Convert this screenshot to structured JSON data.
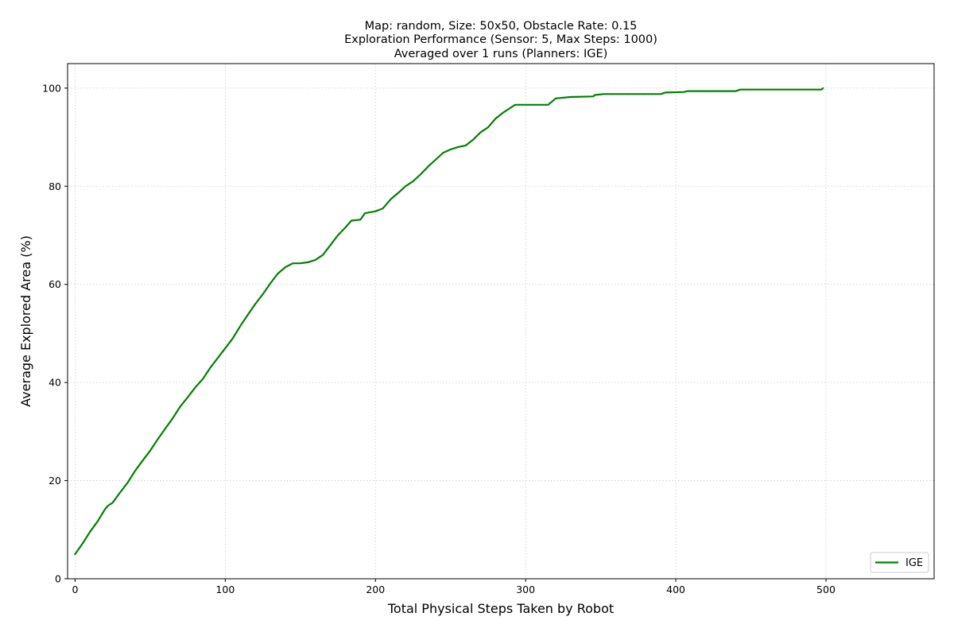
{
  "chart_data": {
    "type": "line",
    "title_lines": [
      "Map: random, Size: 50x50, Obstacle Rate: 0.15",
      "Exploration Performance (Sensor: 5, Max Steps: 1000)",
      "Averaged over 1 runs (Planners: IGE)"
    ],
    "xlabel": "Total Physical Steps Taken by Robot",
    "ylabel": "Average Explored Area (%)",
    "xlim": [
      -5,
      572
    ],
    "ylim": [
      0,
      105
    ],
    "xticks": [
      0,
      100,
      200,
      300,
      400,
      500
    ],
    "yticks": [
      0,
      20,
      40,
      60,
      80,
      100
    ],
    "grid": true,
    "legend_position": "bottom-right",
    "series": [
      {
        "name": "IGE",
        "color": "#008000",
        "points": [
          [
            0,
            5.0
          ],
          [
            5,
            7.2
          ],
          [
            10,
            9.6
          ],
          [
            15,
            11.7
          ],
          [
            20,
            14.2
          ],
          [
            22,
            14.9
          ],
          [
            25,
            15.5
          ],
          [
            30,
            17.6
          ],
          [
            35,
            19.6
          ],
          [
            40,
            22.0
          ],
          [
            45,
            24.1
          ],
          [
            50,
            26.1
          ],
          [
            55,
            28.4
          ],
          [
            60,
            30.6
          ],
          [
            65,
            32.7
          ],
          [
            70,
            35.1
          ],
          [
            75,
            37.0
          ],
          [
            80,
            39.0
          ],
          [
            85,
            40.7
          ],
          [
            90,
            43.0
          ],
          [
            95,
            45.0
          ],
          [
            100,
            47.0
          ],
          [
            105,
            49.0
          ],
          [
            110,
            51.5
          ],
          [
            115,
            53.8
          ],
          [
            120,
            56.0
          ],
          [
            125,
            58.0
          ],
          [
            130,
            60.2
          ],
          [
            135,
            62.2
          ],
          [
            140,
            63.5
          ],
          [
            145,
            64.3
          ],
          [
            150,
            64.3
          ],
          [
            155,
            64.5
          ],
          [
            160,
            65.0
          ],
          [
            165,
            66.0
          ],
          [
            170,
            68.0
          ],
          [
            175,
            70.0
          ],
          [
            180,
            71.6
          ],
          [
            184,
            73.0
          ],
          [
            190,
            73.2
          ],
          [
            193,
            74.5
          ],
          [
            200,
            74.9
          ],
          [
            205,
            75.5
          ],
          [
            210,
            77.3
          ],
          [
            215,
            78.6
          ],
          [
            220,
            80.0
          ],
          [
            225,
            81.0
          ],
          [
            230,
            82.4
          ],
          [
            235,
            84.0
          ],
          [
            240,
            85.4
          ],
          [
            245,
            86.8
          ],
          [
            250,
            87.5
          ],
          [
            255,
            88.0
          ],
          [
            260,
            88.3
          ],
          [
            265,
            89.5
          ],
          [
            270,
            91.0
          ],
          [
            275,
            92.0
          ],
          [
            280,
            93.8
          ],
          [
            285,
            95.0
          ],
          [
            290,
            96.0
          ],
          [
            293,
            96.6
          ],
          [
            300,
            96.6
          ],
          [
            315,
            96.6
          ],
          [
            320,
            97.9
          ],
          [
            330,
            98.2
          ],
          [
            345,
            98.3
          ],
          [
            346,
            98.6
          ],
          [
            352,
            98.8
          ],
          [
            370,
            98.8
          ],
          [
            390,
            98.8
          ],
          [
            393,
            99.1
          ],
          [
            405,
            99.2
          ],
          [
            408,
            99.4
          ],
          [
            440,
            99.4
          ],
          [
            443,
            99.7
          ],
          [
            470,
            99.7
          ],
          [
            497,
            99.7
          ],
          [
            498,
            100.0
          ]
        ]
      }
    ]
  }
}
